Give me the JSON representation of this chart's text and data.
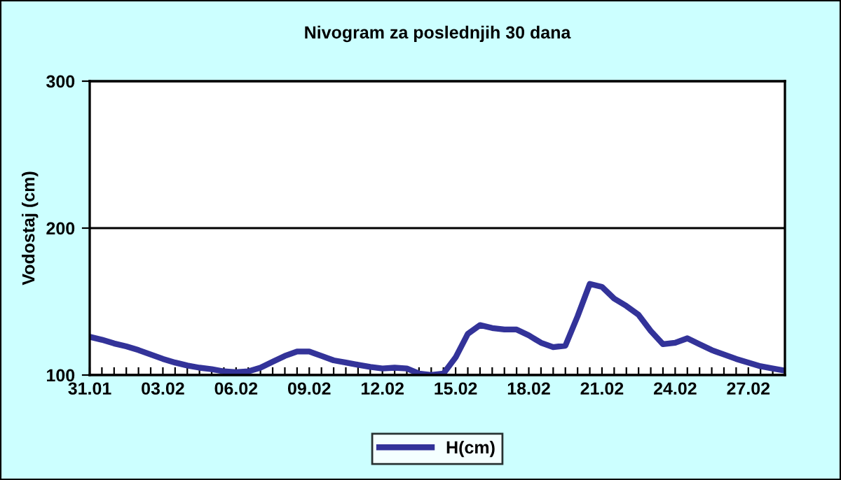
{
  "chart_data": {
    "type": "line",
    "title": "Nivogram za poslednjih 30 dana",
    "ylabel": "Vodostaj (cm)",
    "categories": [
      "31.01",
      null,
      null,
      null,
      null,
      null,
      "03.02",
      null,
      null,
      null,
      null,
      null,
      "06.02",
      null,
      null,
      null,
      null,
      null,
      "09.02",
      null,
      null,
      null,
      null,
      null,
      "12.02",
      null,
      null,
      null,
      null,
      null,
      "15.02",
      null,
      null,
      null,
      null,
      null,
      "18.02",
      null,
      null,
      null,
      null,
      null,
      "21.02",
      null,
      null,
      null,
      null,
      null,
      "24.02",
      null,
      null,
      null,
      null,
      null,
      "27.02",
      null,
      null,
      null
    ],
    "series": [
      {
        "name": "H(cm)",
        "color": "#333399",
        "values": [
          126,
          124,
          121.5,
          119.5,
          117,
          114,
          111,
          108.5,
          106.5,
          105,
          104,
          102.5,
          102,
          102.5,
          105,
          109,
          113,
          116,
          116,
          113,
          110,
          108.5,
          107,
          105.5,
          104.5,
          105,
          104.5,
          101,
          100,
          101,
          112,
          128,
          134,
          132,
          131,
          131,
          127,
          122,
          119,
          120,
          140,
          162,
          160,
          152,
          147,
          141,
          130,
          121,
          122,
          125,
          121,
          117,
          114,
          111,
          108.5,
          106,
          104.5,
          103
        ]
      }
    ],
    "ylim": [
      100,
      300
    ],
    "yticks": [
      100,
      200,
      300
    ],
    "grid": "y",
    "legend": "bottom",
    "marker": "none",
    "line_style": "solid"
  }
}
